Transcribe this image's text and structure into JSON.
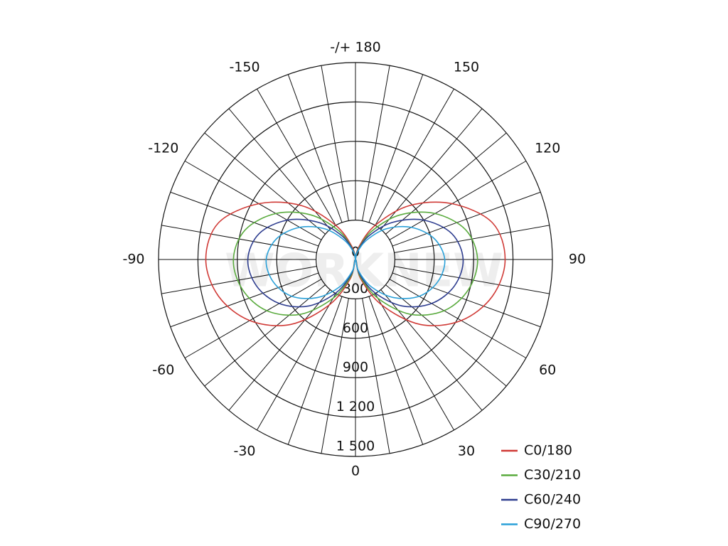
{
  "chart_data": {
    "type": "polar",
    "watermark": "WORKNEW",
    "angles": [
      -180,
      -165,
      -150,
      -135,
      -120,
      -105,
      -90,
      -75,
      -60,
      -45,
      -30,
      -15,
      0,
      15,
      30,
      45,
      60,
      75,
      90,
      105,
      120,
      135,
      150,
      165,
      180
    ],
    "rlim": [
      0,
      1500
    ],
    "rticks": [
      0,
      300,
      600,
      900,
      {
        "value": 1200,
        "label": "1 200"
      },
      {
        "value": 1500,
        "label": "1 500"
      }
    ],
    "angle_ticks": [
      {
        "value": 180,
        "label": "-/+ 180"
      },
      150,
      120,
      90,
      60,
      30,
      0,
      -30,
      -60,
      -90,
      -120,
      -150
    ],
    "series": [
      {
        "name": "C0/180",
        "color": "#d03a36",
        "values": [
          0,
          100,
          300,
          580,
          850,
          1080,
          1140,
          1080,
          930,
          700,
          400,
          150,
          0,
          150,
          400,
          700,
          930,
          1080,
          1140,
          1080,
          850,
          580,
          300,
          100,
          0
        ]
      },
      {
        "name": "C30/210",
        "color": "#5aab3e",
        "values": [
          0,
          80,
          250,
          480,
          700,
          870,
          930,
          890,
          780,
          590,
          340,
          130,
          0,
          130,
          340,
          590,
          780,
          890,
          930,
          870,
          700,
          480,
          250,
          80,
          0
        ]
      },
      {
        "name": "C60/240",
        "color": "#2e3d8f",
        "values": [
          0,
          70,
          210,
          400,
          600,
          760,
          820,
          780,
          670,
          500,
          290,
          110,
          0,
          110,
          290,
          500,
          670,
          780,
          820,
          760,
          600,
          400,
          210,
          70,
          0
        ]
      },
      {
        "name": "C90/270",
        "color": "#2aa0d8",
        "values": [
          0,
          60,
          170,
          330,
          490,
          620,
          680,
          650,
          560,
          410,
          240,
          90,
          0,
          90,
          240,
          410,
          560,
          650,
          680,
          620,
          490,
          330,
          170,
          60,
          0
        ]
      }
    ]
  }
}
